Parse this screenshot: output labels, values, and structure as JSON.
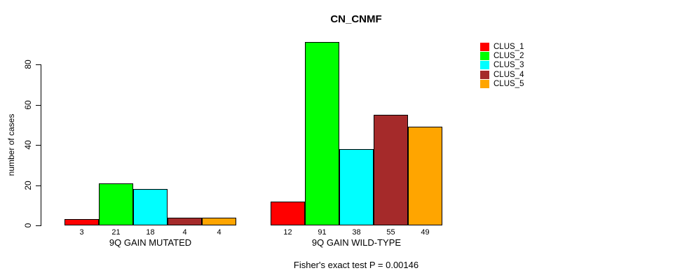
{
  "chart_data": {
    "type": "bar",
    "title": "CN_CNMF",
    "ylabel": "number of cases",
    "xlabel": "",
    "ylim": [
      0,
      91
    ],
    "yticks": [
      0,
      20,
      40,
      60,
      80
    ],
    "grid": false,
    "legend_position": "right",
    "series_names": [
      "CLUS_1",
      "CLUS_2",
      "CLUS_3",
      "CLUS_4",
      "CLUS_5"
    ],
    "colors": [
      "#FF0000",
      "#00FF00",
      "#00FFFF",
      "#A52A2A",
      "#FFA500"
    ],
    "groups": [
      {
        "label": "9Q GAIN MUTATED",
        "values": [
          3,
          21,
          18,
          4,
          4
        ]
      },
      {
        "label": "9Q GAIN WILD-TYPE",
        "values": [
          12,
          91,
          38,
          55,
          49
        ]
      }
    ],
    "annotation": "Fisher's exact test P = 0.00146"
  }
}
